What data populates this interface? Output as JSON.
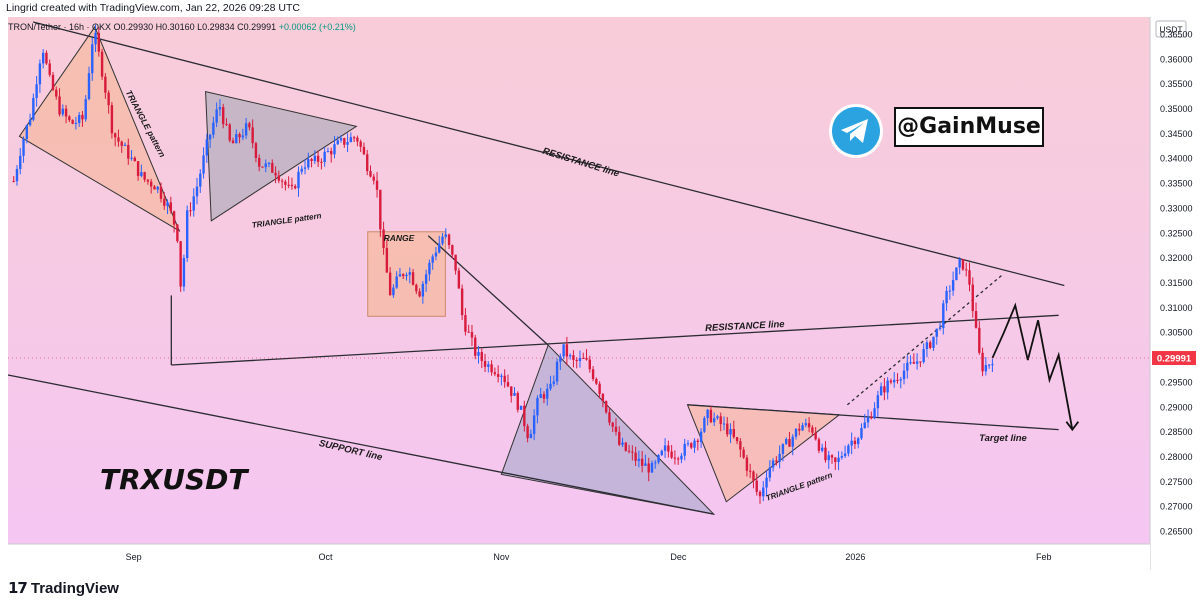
{
  "header": {
    "credit": "Lingrid created with TradingView.com, Jan 22, 2026 09:28 UTC"
  },
  "legend": {
    "symbol": "TRON/Tether · 16h · OKX",
    "ohlc": "O0.29930 H0.30160 L0.29834 C0.29991",
    "change": "+0.00062 (+0.21%)"
  },
  "branding": {
    "telegram_handle": "@GainMuse",
    "footer_logo": "TradingView",
    "footer_mark": "17"
  },
  "chart_data": {
    "type": "candlestick",
    "title": "TRXUSDT",
    "currency": "USDT",
    "ylim": [
      0.2625,
      0.3685
    ],
    "y_ticks": [
      "0.36500",
      "0.36000",
      "0.35500",
      "0.35000",
      "0.34500",
      "0.34000",
      "0.33500",
      "0.33000",
      "0.32500",
      "0.32000",
      "0.31500",
      "0.31000",
      "0.30500",
      "0.30000",
      "0.29500",
      "0.29000",
      "0.28500",
      "0.28000",
      "0.27500",
      "0.27000",
      "0.26500"
    ],
    "x_ticks": [
      {
        "label": "Sep",
        "t": 0.11
      },
      {
        "label": "Oct",
        "t": 0.278
      },
      {
        "label": "Nov",
        "t": 0.432
      },
      {
        "label": "Dec",
        "t": 0.587
      },
      {
        "label": "2026",
        "t": 0.742
      },
      {
        "label": "Feb",
        "t": 0.907
      }
    ],
    "last_price": "0.29991",
    "annotations": [
      {
        "text": "TRIANGLE pattern"
      },
      {
        "text": "TRIANGLE pattern"
      },
      {
        "text": "RANGE"
      },
      {
        "text": "RESISTANCE line"
      },
      {
        "text": "RESISTANCE line"
      },
      {
        "text": "SUPPORT line"
      },
      {
        "text": "TRIANGLE pattern"
      },
      {
        "text": "Target line"
      }
    ],
    "price_path": [
      [
        0.005,
        0.3355
      ],
      [
        0.012,
        0.343
      ],
      [
        0.02,
        0.349
      ],
      [
        0.03,
        0.363
      ],
      [
        0.036,
        0.356
      ],
      [
        0.045,
        0.35
      ],
      [
        0.055,
        0.347
      ],
      [
        0.066,
        0.348
      ],
      [
        0.075,
        0.366
      ],
      [
        0.083,
        0.357
      ],
      [
        0.092,
        0.345
      ],
      [
        0.105,
        0.341
      ],
      [
        0.118,
        0.336
      ],
      [
        0.13,
        0.3345
      ],
      [
        0.14,
        0.3305
      ],
      [
        0.148,
        0.3255
      ],
      [
        0.152,
        0.312
      ],
      [
        0.156,
        0.328
      ],
      [
        0.165,
        0.334
      ],
      [
        0.175,
        0.3435
      ],
      [
        0.185,
        0.351
      ],
      [
        0.195,
        0.3425
      ],
      [
        0.21,
        0.3465
      ],
      [
        0.22,
        0.339
      ],
      [
        0.235,
        0.3375
      ],
      [
        0.248,
        0.333
      ],
      [
        0.258,
        0.339
      ],
      [
        0.27,
        0.3395
      ],
      [
        0.29,
        0.343
      ],
      [
        0.305,
        0.3445
      ],
      [
        0.315,
        0.3385
      ],
      [
        0.322,
        0.336
      ],
      [
        0.328,
        0.322
      ],
      [
        0.335,
        0.3125
      ],
      [
        0.342,
        0.316
      ],
      [
        0.35,
        0.318
      ],
      [
        0.36,
        0.313
      ],
      [
        0.372,
        0.3205
      ],
      [
        0.382,
        0.325
      ],
      [
        0.392,
        0.318
      ],
      [
        0.398,
        0.308
      ],
      [
        0.41,
        0.3005
      ],
      [
        0.42,
        0.2985
      ],
      [
        0.432,
        0.297
      ],
      [
        0.44,
        0.2935
      ],
      [
        0.448,
        0.29
      ],
      [
        0.456,
        0.284
      ],
      [
        0.465,
        0.292
      ],
      [
        0.475,
        0.2935
      ],
      [
        0.485,
        0.302
      ],
      [
        0.495,
        0.299
      ],
      [
        0.505,
        0.2995
      ],
      [
        0.515,
        0.2955
      ],
      [
        0.525,
        0.289
      ],
      [
        0.535,
        0.2825
      ],
      [
        0.545,
        0.2805
      ],
      [
        0.555,
        0.2785
      ],
      [
        0.565,
        0.2775
      ],
      [
        0.575,
        0.2815
      ],
      [
        0.585,
        0.2805
      ],
      [
        0.595,
        0.282
      ],
      [
        0.605,
        0.2845
      ],
      [
        0.613,
        0.2885
      ],
      [
        0.622,
        0.287
      ],
      [
        0.63,
        0.2855
      ],
      [
        0.64,
        0.282
      ],
      [
        0.65,
        0.2765
      ],
      [
        0.658,
        0.2715
      ],
      [
        0.665,
        0.2775
      ],
      [
        0.675,
        0.2805
      ],
      [
        0.685,
        0.2835
      ],
      [
        0.695,
        0.2865
      ],
      [
        0.705,
        0.2855
      ],
      [
        0.715,
        0.2795
      ],
      [
        0.725,
        0.2785
      ],
      [
        0.735,
        0.2825
      ],
      [
        0.745,
        0.2845
      ],
      [
        0.755,
        0.2885
      ],
      [
        0.765,
        0.2935
      ],
      [
        0.775,
        0.2955
      ],
      [
        0.785,
        0.2975
      ],
      [
        0.795,
        0.299
      ],
      [
        0.805,
        0.302
      ],
      [
        0.815,
        0.306
      ],
      [
        0.822,
        0.3125
      ],
      [
        0.828,
        0.316
      ],
      [
        0.835,
        0.3195
      ],
      [
        0.842,
        0.315
      ],
      [
        0.847,
        0.306
      ],
      [
        0.852,
        0.298
      ],
      [
        0.858,
        0.2985
      ],
      [
        0.862,
        0.2999
      ]
    ],
    "projection_path": [
      [
        0.862,
        0.2999
      ],
      [
        0.872,
        0.305
      ],
      [
        0.882,
        0.3105
      ],
      [
        0.893,
        0.2995
      ],
      [
        0.902,
        0.3075
      ],
      [
        0.912,
        0.2955
      ],
      [
        0.92,
        0.3005
      ],
      [
        0.932,
        0.2855
      ]
    ]
  }
}
